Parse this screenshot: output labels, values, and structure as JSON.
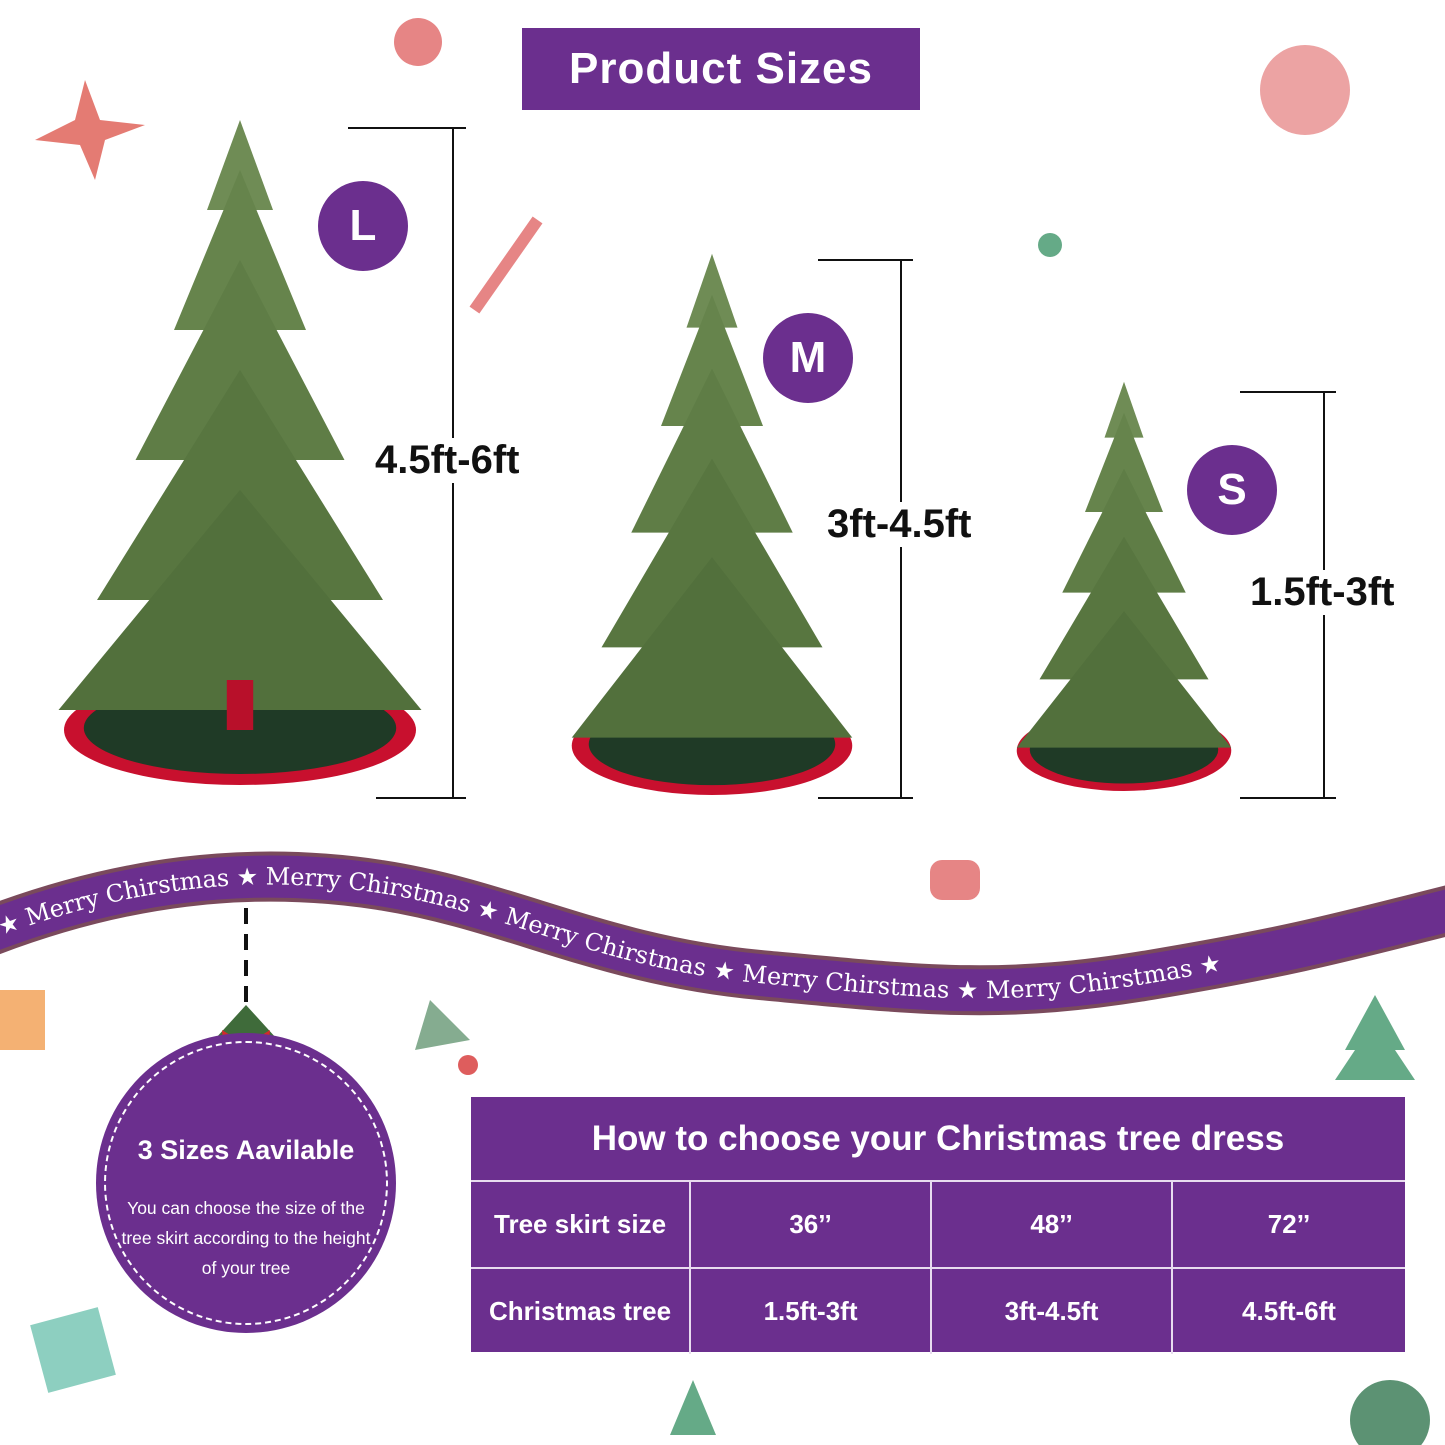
{
  "title": "Product Sizes",
  "sizes": [
    {
      "letter": "L",
      "height": "4.5ft-6ft"
    },
    {
      "letter": "M",
      "height": "3ft-4.5ft"
    },
    {
      "letter": "S",
      "height": "1.5ft-3ft"
    }
  ],
  "ribbon": {
    "text": "Merry Chirstmas",
    "star": "★"
  },
  "badge": {
    "title": "3 Sizes Aavilable",
    "text": "You can choose the size of the tree skirt according to the height of your tree"
  },
  "table": {
    "title": "How to choose your Christmas tree dress",
    "rows": [
      {
        "label": "Tree skirt size",
        "values": [
          "36’’",
          "48’’",
          "72’’"
        ]
      },
      {
        "label": "Christmas tree",
        "values": [
          "1.5ft-3ft",
          "3ft-4.5ft",
          "4.5ft-6ft"
        ]
      }
    ]
  },
  "colors": {
    "purple": "#6b2f8e",
    "tree_green": "#5f7d4a",
    "skirt_green": "#1f3a26",
    "skirt_red": "#c8102e"
  }
}
